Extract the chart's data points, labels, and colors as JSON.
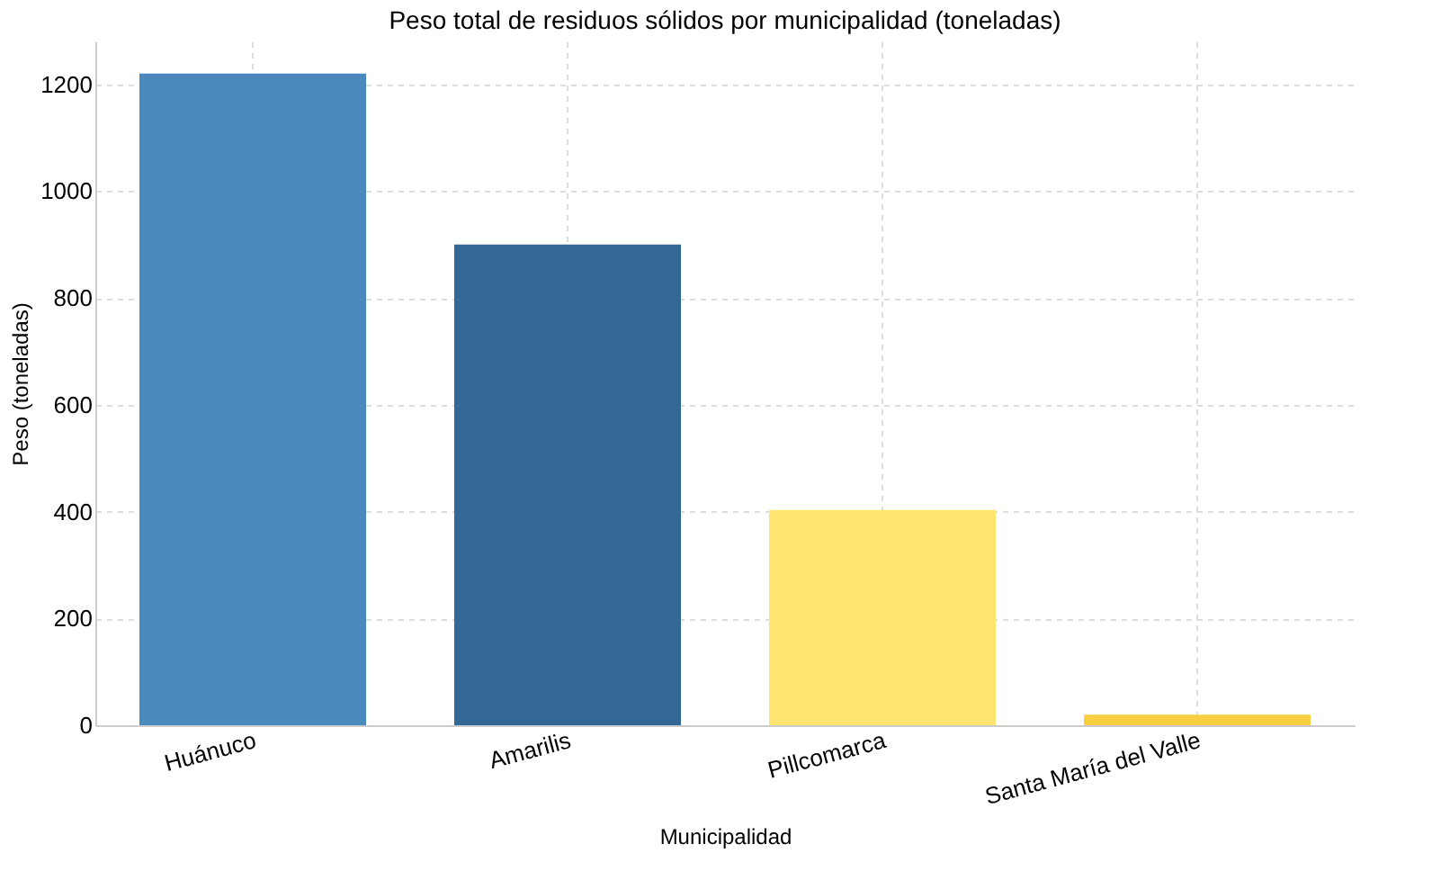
{
  "chart_data": {
    "type": "bar",
    "title": "Peso total de residuos sólidos por municipalidad (toneladas)",
    "xlabel": "Municipalidad",
    "ylabel": "Peso (toneladas)",
    "categories": [
      "Huánuco",
      "Amarilis",
      "Pillcomarca",
      "Santa María del Valle"
    ],
    "values": [
      1220,
      900,
      403,
      20
    ],
    "colors": [
      "#4a89bd",
      "#336796",
      "#fee570",
      "#f8cf40"
    ],
    "ylim": [
      0,
      1280
    ],
    "yticks": [
      0,
      200,
      400,
      600,
      800,
      1000,
      1200
    ],
    "grid": true
  }
}
